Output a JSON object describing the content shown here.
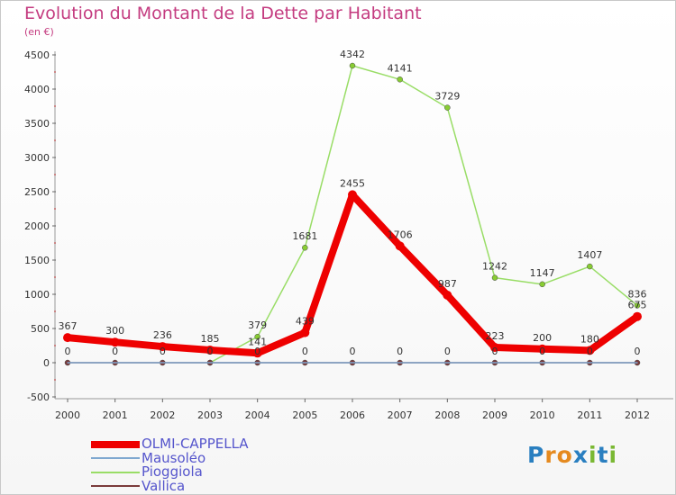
{
  "header": {
    "title": "Evolution du Montant de la Dette par Habitant",
    "subtitle": "(en €)"
  },
  "logo": {
    "text": "Proxiti",
    "letters": [
      {
        "ch": "P",
        "color": "#2a7fc0"
      },
      {
        "ch": "r",
        "color": "#e58a1f"
      },
      {
        "ch": "o",
        "color": "#e58a1f"
      },
      {
        "ch": "x",
        "color": "#2a7fc0"
      },
      {
        "ch": "i",
        "color": "#7ab833"
      },
      {
        "ch": "t",
        "color": "#2a7fc0"
      },
      {
        "ch": "i",
        "color": "#7ab833"
      }
    ]
  },
  "chart_data": {
    "type": "line",
    "title": "Evolution du Montant de la Dette par Habitant",
    "ylabel": "(en €)",
    "x": [
      "2000",
      "2001",
      "2002",
      "2003",
      "2004",
      "2005",
      "2006",
      "2007",
      "2008",
      "2009",
      "2010",
      "2011",
      "2012"
    ],
    "ylim": [
      -500,
      4500
    ],
    "yticks": [
      -500,
      0,
      500,
      1000,
      1500,
      2000,
      2500,
      3000,
      3500,
      4000,
      4500
    ],
    "grid": false,
    "legend_position": "bottom-left",
    "series": [
      {
        "name": "OLMI-CAPPELLA",
        "color": "#ee0000",
        "values": [
          367,
          300,
          236,
          185,
          141,
          439,
          2455,
          1706,
          987,
          223,
          200,
          180,
          675
        ],
        "labels": [
          "367",
          "300",
          "236",
          "185",
          "141",
          "439",
          "2455",
          "1706",
          "987",
          "223",
          "200",
          "180",
          "675"
        ]
      },
      {
        "name": "Mausoléo",
        "color": "#7fa8d0",
        "values": [
          0,
          0,
          0,
          0,
          0,
          0,
          0,
          0,
          0,
          0,
          0,
          0,
          0
        ],
        "labels": []
      },
      {
        "name": "Pioggiola",
        "color": "#99dd66",
        "values": [
          null,
          null,
          null,
          0,
          379,
          1681,
          4342,
          4141,
          3729,
          1242,
          1147,
          1407,
          836
        ],
        "labels": [
          null,
          null,
          null,
          null,
          "379",
          "1681",
          "4342",
          "4141",
          "3729",
          "1242",
          "1147",
          "1407",
          "836"
        ]
      },
      {
        "name": "Vallica",
        "color": "#7a3b3b",
        "values": [
          0,
          0,
          0,
          0,
          0,
          0,
          0,
          0,
          0,
          0,
          0,
          0,
          0
        ],
        "labels": [
          "0",
          "0",
          "0",
          "0",
          "0",
          "0",
          "0",
          "0",
          "0",
          "0",
          "0",
          "0",
          "0"
        ]
      }
    ]
  }
}
